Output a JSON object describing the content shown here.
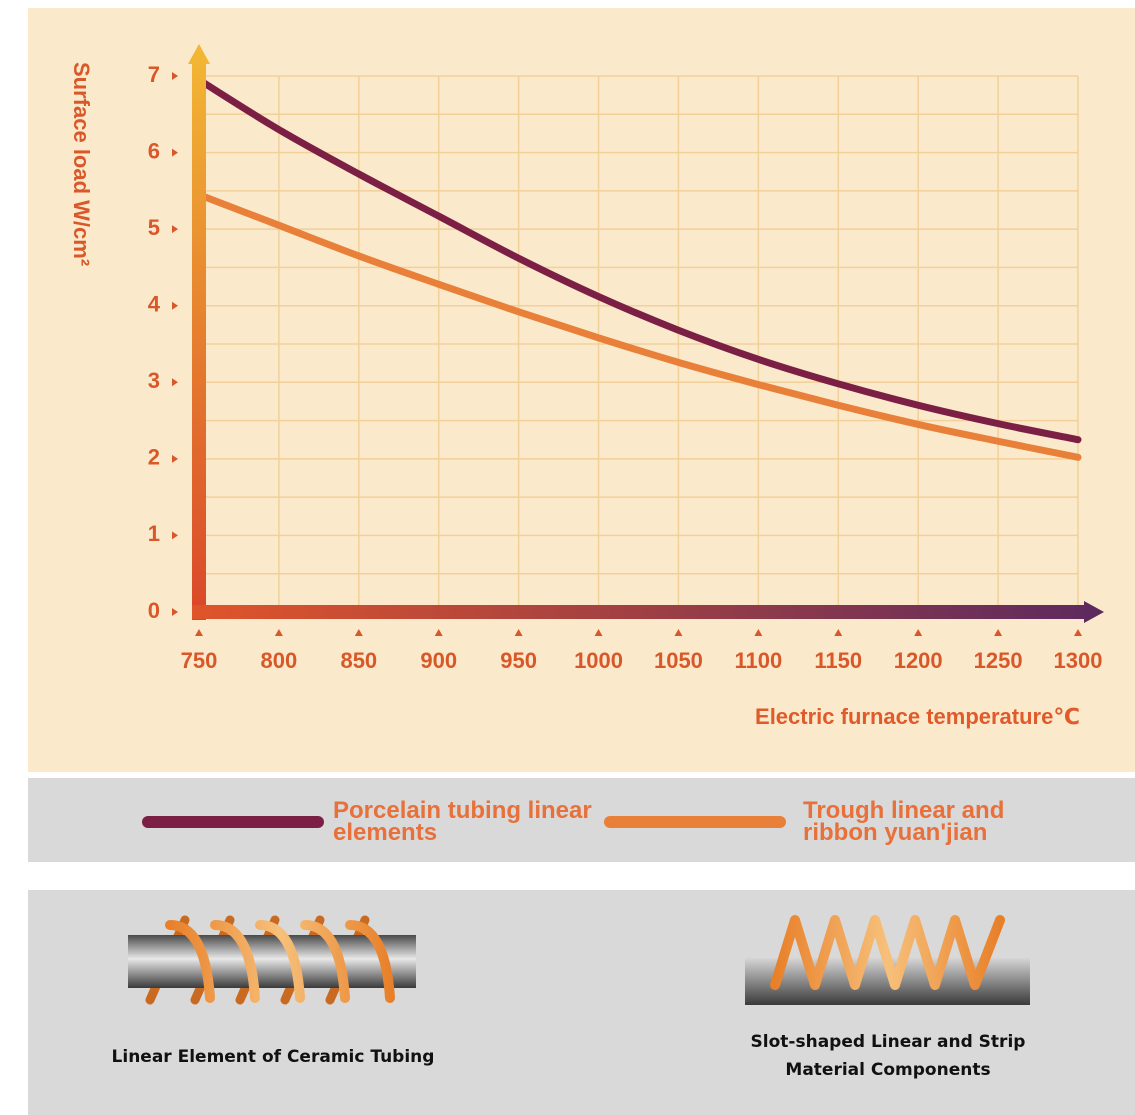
{
  "chart_data": {
    "type": "line",
    "x_label": "Electric furnace temperature℃",
    "y_label": "Surface load  W/cm²",
    "x": [
      750,
      800,
      850,
      900,
      950,
      1000,
      1050,
      1100,
      1150,
      1200,
      1250,
      1300
    ],
    "series": [
      {
        "name": "Porcelain tubing linear elements",
        "color": "#7b1f45",
        "values": [
          6.95,
          6.3,
          5.72,
          5.17,
          4.62,
          4.12,
          3.68,
          3.3,
          2.98,
          2.7,
          2.46,
          2.25
        ]
      },
      {
        "name": "Trough linear and ribbon yuan'jian",
        "color": "#e8803a",
        "values": [
          5.45,
          5.05,
          4.65,
          4.28,
          3.92,
          3.58,
          3.26,
          2.97,
          2.7,
          2.45,
          2.23,
          2.02
        ]
      }
    ],
    "xlim": [
      750,
      1300
    ],
    "xticks": [
      750,
      800,
      850,
      900,
      950,
      1000,
      1050,
      1100,
      1150,
      1200,
      1250,
      1300
    ],
    "ylim": [
      0,
      7
    ],
    "yticks": [
      0,
      1,
      2,
      3,
      4,
      5,
      6,
      7
    ],
    "grid": true
  },
  "illustrations": [
    {
      "caption": "Linear Element of Ceramic Tubing"
    },
    {
      "caption": "Slot-shaped Linear and Strip Material Components"
    }
  ]
}
